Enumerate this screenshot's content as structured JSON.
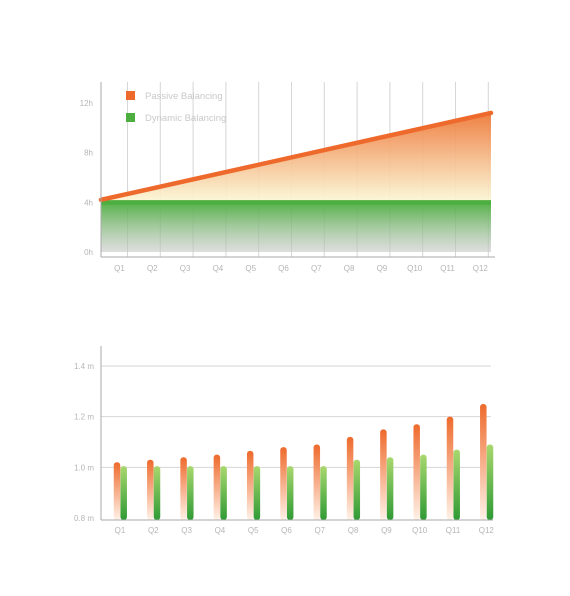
{
  "colors": {
    "passive": "#ee6a2c",
    "dynamic": "#4cae3f",
    "grid": "#d6d6d6",
    "axis": "#a8a8a8",
    "text": "#b5b5b5"
  },
  "chart_data": [
    {
      "type": "area",
      "categories": [
        "Q1",
        "Q2",
        "Q3",
        "Q4",
        "Q5",
        "Q6",
        "Q7",
        "Q8",
        "Q9",
        "Q10",
        "Q11",
        "Q12"
      ],
      "ylim": [
        0,
        12
      ],
      "ytick_values": [
        0,
        4,
        8,
        12
      ],
      "ytick_labels": [
        "0h",
        "4h",
        "8h",
        "12h"
      ],
      "grid": "vertical",
      "legend_position": "top-left",
      "series": [
        {
          "name": "Passive Balancing",
          "color": "#ee6a2c",
          "start": 4.2,
          "end": 11.2
        },
        {
          "name": "Dynamic Balancing",
          "color": "#4cae3f",
          "start": 4.0,
          "end": 4.0
        }
      ]
    },
    {
      "type": "bar",
      "categories": [
        "Q1",
        "Q2",
        "Q3",
        "Q4",
        "Q5",
        "Q6",
        "Q7",
        "Q8",
        "Q9",
        "Q10",
        "Q11",
        "Q12"
      ],
      "ylim": [
        0.8,
        1.4
      ],
      "ytick_values": [
        0.8,
        1.0,
        1.2,
        1.4
      ],
      "ytick_labels": [
        "0.8 m",
        "1.0 m",
        "1.2 m",
        "1.4 m"
      ],
      "grid": "horizontal",
      "series": [
        {
          "color": "#ee6a2c",
          "values": [
            1.02,
            1.03,
            1.04,
            1.05,
            1.065,
            1.08,
            1.09,
            1.12,
            1.15,
            1.17,
            1.2,
            1.25
          ]
        },
        {
          "color": "#4cae3f",
          "values": [
            1.005,
            1.005,
            1.005,
            1.005,
            1.005,
            1.005,
            1.005,
            1.03,
            1.04,
            1.05,
            1.07,
            1.09
          ]
        }
      ]
    }
  ]
}
